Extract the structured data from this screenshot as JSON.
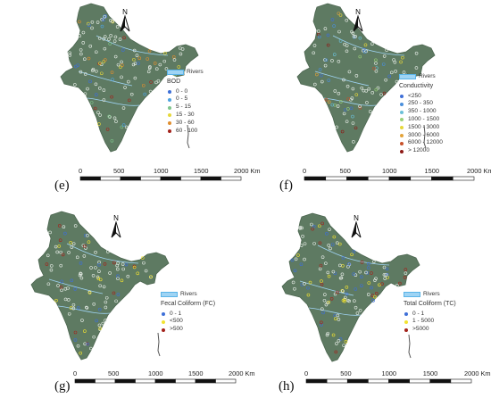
{
  "colors": {
    "land": "#5e7a62",
    "land_dark": "#4c6650",
    "river": "#9fd4f4",
    "river_border": "#5ab4e8",
    "station_white": "#e8eee8"
  },
  "icons": {
    "north_arrow": "north-arrow-icon",
    "river_swatch": "river-swatch-icon"
  },
  "panels": [
    {
      "id": "e",
      "label": "(e)",
      "north": "N",
      "rivers_label": "Rivers",
      "legend_title": "BOD",
      "legend_items": [
        {
          "label": "0 - 0",
          "color": "#3e6fd8"
        },
        {
          "label": "0 - 5",
          "color": "#4fa3e0"
        },
        {
          "label": "5 - 15",
          "color": "#7fc58c"
        },
        {
          "label": "15 - 30",
          "color": "#e6d83a"
        },
        {
          "label": "30 - 60",
          "color": "#e08e2f"
        },
        {
          "label": "60 - 100",
          "color": "#a3231c"
        }
      ],
      "scale_ticks": [
        "0",
        "500",
        "1000",
        "1500",
        "2000 Km"
      ]
    },
    {
      "id": "f",
      "label": "(f)",
      "north": "N",
      "rivers_label": "Rivers",
      "legend_title": "Conductivity",
      "legend_items": [
        {
          "label": "<250",
          "color": "#3e6fd8"
        },
        {
          "label": "250 - 350",
          "color": "#4a8fdc"
        },
        {
          "label": "350 - 1000",
          "color": "#6ac0d8"
        },
        {
          "label": "1000 - 1500",
          "color": "#9ad07a"
        },
        {
          "label": "1500 - 3000",
          "color": "#e6d83a"
        },
        {
          "label": "3000 - 6000",
          "color": "#e3a33a"
        },
        {
          "label": "6000 - 12000",
          "color": "#c8522a"
        },
        {
          "label": "> 12000",
          "color": "#8e1a16"
        }
      ],
      "scale_ticks": [
        "0",
        "500",
        "1000",
        "1500",
        "2000 Km"
      ]
    },
    {
      "id": "g",
      "label": "(g)",
      "north": "N",
      "rivers_label": "Rivers",
      "legend_title": "Fecal Coliform (FC)",
      "legend_items": [
        {
          "label": "0 - 1",
          "color": "#3e6fd8"
        },
        {
          "label": "<500",
          "color": "#f2e330"
        },
        {
          "label": ">500",
          "color": "#a3231c"
        }
      ],
      "scale_ticks": [
        "0",
        "500",
        "1000",
        "1500",
        "2000 Km"
      ]
    },
    {
      "id": "h",
      "label": "(h)",
      "north": "N",
      "rivers_label": "Rivers",
      "legend_title": "Total Coliform (TC)",
      "legend_items": [
        {
          "label": "0 - 1",
          "color": "#3e6fd8"
        },
        {
          "label": "1 - 5000",
          "color": "#f2e330"
        },
        {
          "label": ">5000",
          "color": "#a3231c"
        }
      ],
      "scale_ticks": [
        "0",
        "500",
        "1000",
        "1500",
        "2000 Km"
      ]
    }
  ]
}
